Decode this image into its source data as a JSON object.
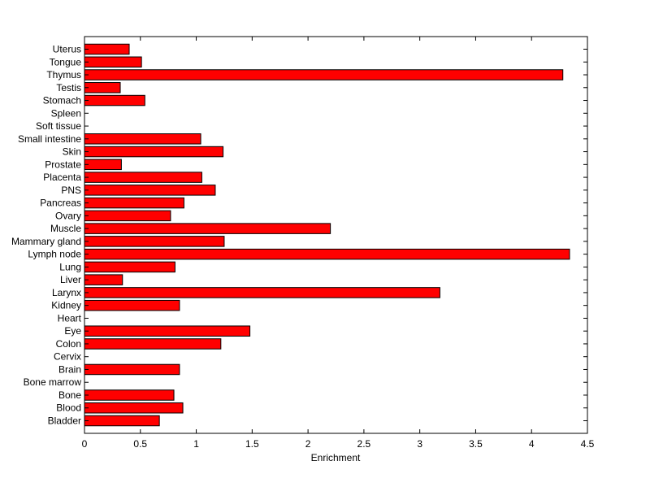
{
  "chart_data": {
    "type": "bar",
    "orientation": "horizontal",
    "categories": [
      "Bladder",
      "Blood",
      "Bone",
      "Bone marrow",
      "Brain",
      "Cervix",
      "Colon",
      "Eye",
      "Heart",
      "Kidney",
      "Larynx",
      "Liver",
      "Lung",
      "Lymph node",
      "Mammary gland",
      "Muscle",
      "Ovary",
      "Pancreas",
      "PNS",
      "Placenta",
      "Prostate",
      "Skin",
      "Small intestine",
      "Soft tissue",
      "Spleen",
      "Stomach",
      "Testis",
      "Thymus",
      "Tongue",
      "Uterus"
    ],
    "values": [
      0.67,
      0.88,
      0.8,
      0,
      0.85,
      0,
      1.22,
      1.48,
      0,
      0.85,
      3.18,
      0.34,
      0.81,
      4.34,
      1.25,
      2.2,
      0.77,
      0.89,
      1.17,
      1.05,
      0.33,
      1.24,
      1.04,
      0,
      0,
      0.54,
      0.32,
      4.28,
      0.51,
      0.4
    ],
    "title": "",
    "xlabel": "Enrichment",
    "ylabel": "",
    "xlim": [
      0,
      4.5
    ],
    "xticks": [
      "0",
      "0.5",
      "1",
      "1.5",
      "2",
      "2.5",
      "3",
      "3.5",
      "4",
      "4.5"
    ],
    "grid": false,
    "bar_color": "#ff0000",
    "edge_color": "#000000"
  }
}
